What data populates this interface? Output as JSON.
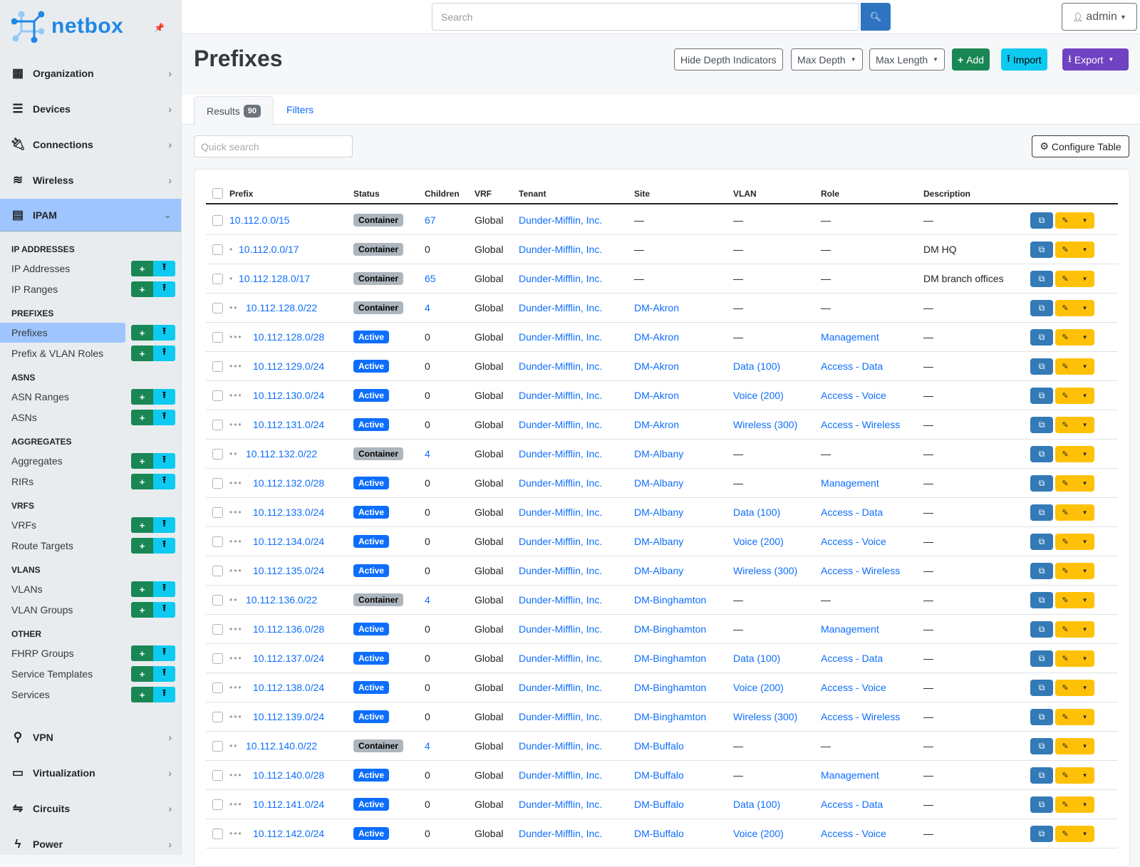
{
  "brand": {
    "name": "netbox",
    "accent": "#1e88e5"
  },
  "topbar": {
    "search_placeholder": "Search",
    "user": "admin"
  },
  "sidebar": {
    "menus_top": [
      {
        "label": "Organization",
        "icon": "building-icon"
      },
      {
        "label": "Devices",
        "icon": "server-icon"
      },
      {
        "label": "Connections",
        "icon": "plug-icon"
      },
      {
        "label": "Wireless",
        "icon": "wifi-icon"
      }
    ],
    "active_menu": {
      "label": "IPAM",
      "icon": "ipam-icon"
    },
    "sections": [
      {
        "title": "IP ADDRESSES",
        "items": [
          "IP Addresses",
          "IP Ranges"
        ]
      },
      {
        "title": "PREFIXES",
        "items": [
          "Prefixes",
          "Prefix & VLAN Roles"
        ]
      },
      {
        "title": "ASNS",
        "items": [
          "ASN Ranges",
          "ASNs"
        ]
      },
      {
        "title": "AGGREGATES",
        "items": [
          "Aggregates",
          "RIRs"
        ]
      },
      {
        "title": "VRFS",
        "items": [
          "VRFs",
          "Route Targets"
        ]
      },
      {
        "title": "VLANS",
        "items": [
          "VLANs",
          "VLAN Groups"
        ]
      },
      {
        "title": "OTHER",
        "items": [
          "FHRP Groups",
          "Service Templates",
          "Services"
        ]
      }
    ],
    "active_item": "Prefixes",
    "menus_bottom": [
      {
        "label": "VPN",
        "icon": "vpn-icon"
      },
      {
        "label": "Virtualization",
        "icon": "monitor-icon"
      },
      {
        "label": "Circuits",
        "icon": "circuits-icon"
      },
      {
        "label": "Power",
        "icon": "power-icon"
      }
    ]
  },
  "page": {
    "title": "Prefixes",
    "buttons": {
      "hide_depth": "Hide Depth Indicators",
      "max_depth": "Max Depth",
      "max_length": "Max Length",
      "add": "Add",
      "import": "Import",
      "export": "Export"
    },
    "tabs": {
      "results": "Results",
      "results_count": "90",
      "filters": "Filters"
    },
    "quick_search_placeholder": "Quick search",
    "configure_table": "Configure Table"
  },
  "table": {
    "columns": [
      "Prefix",
      "Status",
      "Children",
      "VRF",
      "Tenant",
      "Site",
      "VLAN",
      "Role",
      "Description"
    ],
    "rows": [
      {
        "depth": 0,
        "prefix": "10.112.0.0/15",
        "status": "Container",
        "children": "67",
        "vrf": "Global",
        "tenant": "Dunder-Mifflin, Inc.",
        "site": "—",
        "vlan": "—",
        "role": "—",
        "description": "—"
      },
      {
        "depth": 1,
        "prefix": "10.112.0.0/17",
        "status": "Container",
        "children": "0",
        "vrf": "Global",
        "tenant": "Dunder-Mifflin, Inc.",
        "site": "—",
        "vlan": "—",
        "role": "—",
        "description": "DM HQ"
      },
      {
        "depth": 1,
        "prefix": "10.112.128.0/17",
        "status": "Container",
        "children": "65",
        "vrf": "Global",
        "tenant": "Dunder-Mifflin, Inc.",
        "site": "—",
        "vlan": "—",
        "role": "—",
        "description": "DM branch offices"
      },
      {
        "depth": 2,
        "prefix": "10.112.128.0/22",
        "status": "Container",
        "children": "4",
        "vrf": "Global",
        "tenant": "Dunder-Mifflin, Inc.",
        "site": "DM-Akron",
        "vlan": "—",
        "role": "—",
        "description": "—"
      },
      {
        "depth": 3,
        "prefix": "10.112.128.0/28",
        "status": "Active",
        "children": "0",
        "vrf": "Global",
        "tenant": "Dunder-Mifflin, Inc.",
        "site": "DM-Akron",
        "vlan": "—",
        "role": "Management",
        "description": "—"
      },
      {
        "depth": 3,
        "prefix": "10.112.129.0/24",
        "status": "Active",
        "children": "0",
        "vrf": "Global",
        "tenant": "Dunder-Mifflin, Inc.",
        "site": "DM-Akron",
        "vlan": "Data (100)",
        "role": "Access - Data",
        "description": "—"
      },
      {
        "depth": 3,
        "prefix": "10.112.130.0/24",
        "status": "Active",
        "children": "0",
        "vrf": "Global",
        "tenant": "Dunder-Mifflin, Inc.",
        "site": "DM-Akron",
        "vlan": "Voice (200)",
        "role": "Access - Voice",
        "description": "—"
      },
      {
        "depth": 3,
        "prefix": "10.112.131.0/24",
        "status": "Active",
        "children": "0",
        "vrf": "Global",
        "tenant": "Dunder-Mifflin, Inc.",
        "site": "DM-Akron",
        "vlan": "Wireless (300)",
        "role": "Access - Wireless",
        "description": "—"
      },
      {
        "depth": 2,
        "prefix": "10.112.132.0/22",
        "status": "Container",
        "children": "4",
        "vrf": "Global",
        "tenant": "Dunder-Mifflin, Inc.",
        "site": "DM-Albany",
        "vlan": "—",
        "role": "—",
        "description": "—"
      },
      {
        "depth": 3,
        "prefix": "10.112.132.0/28",
        "status": "Active",
        "children": "0",
        "vrf": "Global",
        "tenant": "Dunder-Mifflin, Inc.",
        "site": "DM-Albany",
        "vlan": "—",
        "role": "Management",
        "description": "—"
      },
      {
        "depth": 3,
        "prefix": "10.112.133.0/24",
        "status": "Active",
        "children": "0",
        "vrf": "Global",
        "tenant": "Dunder-Mifflin, Inc.",
        "site": "DM-Albany",
        "vlan": "Data (100)",
        "role": "Access - Data",
        "description": "—"
      },
      {
        "depth": 3,
        "prefix": "10.112.134.0/24",
        "status": "Active",
        "children": "0",
        "vrf": "Global",
        "tenant": "Dunder-Mifflin, Inc.",
        "site": "DM-Albany",
        "vlan": "Voice (200)",
        "role": "Access - Voice",
        "description": "—"
      },
      {
        "depth": 3,
        "prefix": "10.112.135.0/24",
        "status": "Active",
        "children": "0",
        "vrf": "Global",
        "tenant": "Dunder-Mifflin, Inc.",
        "site": "DM-Albany",
        "vlan": "Wireless (300)",
        "role": "Access - Wireless",
        "description": "—"
      },
      {
        "depth": 2,
        "prefix": "10.112.136.0/22",
        "status": "Container",
        "children": "4",
        "vrf": "Global",
        "tenant": "Dunder-Mifflin, Inc.",
        "site": "DM-Binghamton",
        "vlan": "—",
        "role": "—",
        "description": "—"
      },
      {
        "depth": 3,
        "prefix": "10.112.136.0/28",
        "status": "Active",
        "children": "0",
        "vrf": "Global",
        "tenant": "Dunder-Mifflin, Inc.",
        "site": "DM-Binghamton",
        "vlan": "—",
        "role": "Management",
        "description": "—"
      },
      {
        "depth": 3,
        "prefix": "10.112.137.0/24",
        "status": "Active",
        "children": "0",
        "vrf": "Global",
        "tenant": "Dunder-Mifflin, Inc.",
        "site": "DM-Binghamton",
        "vlan": "Data (100)",
        "role": "Access - Data",
        "description": "—"
      },
      {
        "depth": 3,
        "prefix": "10.112.138.0/24",
        "status": "Active",
        "children": "0",
        "vrf": "Global",
        "tenant": "Dunder-Mifflin, Inc.",
        "site": "DM-Binghamton",
        "vlan": "Voice (200)",
        "role": "Access - Voice",
        "description": "—"
      },
      {
        "depth": 3,
        "prefix": "10.112.139.0/24",
        "status": "Active",
        "children": "0",
        "vrf": "Global",
        "tenant": "Dunder-Mifflin, Inc.",
        "site": "DM-Binghamton",
        "vlan": "Wireless (300)",
        "role": "Access - Wireless",
        "description": "—"
      },
      {
        "depth": 2,
        "prefix": "10.112.140.0/22",
        "status": "Container",
        "children": "4",
        "vrf": "Global",
        "tenant": "Dunder-Mifflin, Inc.",
        "site": "DM-Buffalo",
        "vlan": "—",
        "role": "—",
        "description": "—"
      },
      {
        "depth": 3,
        "prefix": "10.112.140.0/28",
        "status": "Active",
        "children": "0",
        "vrf": "Global",
        "tenant": "Dunder-Mifflin, Inc.",
        "site": "DM-Buffalo",
        "vlan": "—",
        "role": "Management",
        "description": "—"
      },
      {
        "depth": 3,
        "prefix": "10.112.141.0/24",
        "status": "Active",
        "children": "0",
        "vrf": "Global",
        "tenant": "Dunder-Mifflin, Inc.",
        "site": "DM-Buffalo",
        "vlan": "Data (100)",
        "role": "Access - Data",
        "description": "—"
      },
      {
        "depth": 3,
        "prefix": "10.112.142.0/24",
        "status": "Active",
        "children": "0",
        "vrf": "Global",
        "tenant": "Dunder-Mifflin, Inc.",
        "site": "DM-Buffalo",
        "vlan": "Voice (200)",
        "role": "Access - Voice",
        "description": "—"
      }
    ]
  },
  "colors": {
    "container": "#adb5bd",
    "active": "#0d6efd",
    "add": "#198754",
    "import": "#0dcaf0",
    "export": "#6f42c1",
    "edit": "#ffc107",
    "clone": "#337ab7"
  }
}
